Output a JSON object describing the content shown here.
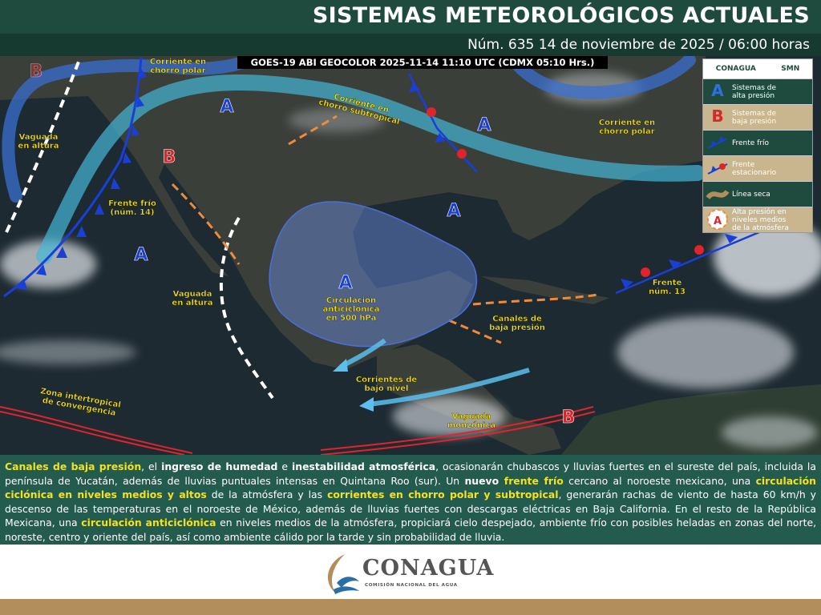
{
  "header": {
    "title": "SISTEMAS METEOROLÓGICOS ACTUALES",
    "subtitle": "Núm. 635 14 de noviembre de 2025 / 06:00 horas"
  },
  "map": {
    "caption": "GOES-19 ABI GEOCOLOR 2025-11-14 11:10 UTC (CDMX  05:10 Hrs.)",
    "systems": [
      "A",
      "A",
      "A",
      "A",
      "A",
      "B",
      "B",
      "B"
    ],
    "labels": [
      {
        "lines": [
          "Corriente en",
          "chorro polar"
        ]
      },
      {
        "lines": [
          "Corriente en",
          "chorro subtropical"
        ]
      },
      {
        "lines": [
          "Corriente en",
          "chorro polar"
        ]
      },
      {
        "lines": [
          "Vaguada",
          "en altura"
        ]
      },
      {
        "lines": [
          "Frente frío",
          "(núm. 14)"
        ]
      },
      {
        "lines": [
          "Vaguada",
          "en altura"
        ]
      },
      {
        "lines": [
          "Circulación",
          "anticiclónica",
          "en 500 hPa"
        ]
      },
      {
        "lines": [
          "Canales de",
          "baja presión"
        ]
      },
      {
        "lines": [
          "Frente",
          "núm. 13"
        ]
      },
      {
        "lines": [
          "Corrientes de",
          "bajo nivel"
        ]
      },
      {
        "lines": [
          "Zona intertropical",
          "de convergencia"
        ]
      },
      {
        "lines": [
          "Vaguada",
          "monzónica"
        ]
      }
    ]
  },
  "legend": {
    "brand": [
      "CONAGUA",
      "SMN"
    ],
    "items": [
      {
        "symbol": "A",
        "icon": "high",
        "lines": [
          "Sistemas de",
          "alta presión"
        ]
      },
      {
        "symbol": "B",
        "icon": "low",
        "lines": [
          "Sistemas de",
          "baja presión"
        ]
      },
      {
        "icon": "cold",
        "lines": [
          "Frente frío"
        ]
      },
      {
        "icon": "stationary",
        "lines": [
          "Frente",
          "estacionario"
        ]
      },
      {
        "icon": "dry",
        "lines": [
          "Línea seca"
        ]
      },
      {
        "symbol": "A",
        "icon": "mid-high",
        "lines": [
          "Alta presión en",
          "niveles medios",
          "de la atmósfera"
        ]
      }
    ]
  },
  "description": [
    {
      "text": "Canales de baja presión",
      "style": "highlight"
    },
    {
      "text": ", el "
    },
    {
      "text": "ingreso de humedad",
      "style": "bold"
    },
    {
      "text": " e "
    },
    {
      "text": "inestabilidad atmosférica",
      "style": "bold"
    },
    {
      "text": ", ocasionarán chubascos y lluvias fuertes en el sureste del país, incluida la península de Yucatán, además de lluvias puntuales intensas en Quintana Roo (sur). Un "
    },
    {
      "text": "nuevo ",
      "style": "bold"
    },
    {
      "text": "frente frío",
      "style": "highlight"
    },
    {
      "text": " cercano al noroeste mexicano, una "
    },
    {
      "text": "circulación ciclónica en niveles medios y altos",
      "style": "highlight"
    },
    {
      "text": " de la atmósfera y las "
    },
    {
      "text": "corrientes en chorro polar y subtropical",
      "style": "highlight"
    },
    {
      "text": ", generarán rachas de viento de hasta 60 km/h y descenso de las temperaturas en el noroeste de México, además de lluvias fuertes con descargas eléctricas en Baja California. En el resto de la República Mexicana, una "
    },
    {
      "text": "circulación anticiclónica",
      "style": "highlight"
    },
    {
      "text": " en niveles medios de la atmósfera, propiciará cielo despejado, ambiente frío con posibles heladas en zonas del norte, noreste, centro y oriente del país, así como ambiente cálido por la tarde y sin probabilidad de lluvia."
    }
  ],
  "footer": {
    "brand": "CONAGUA",
    "tagline": "COMISIÓN NACIONAL DEL AGUA"
  }
}
